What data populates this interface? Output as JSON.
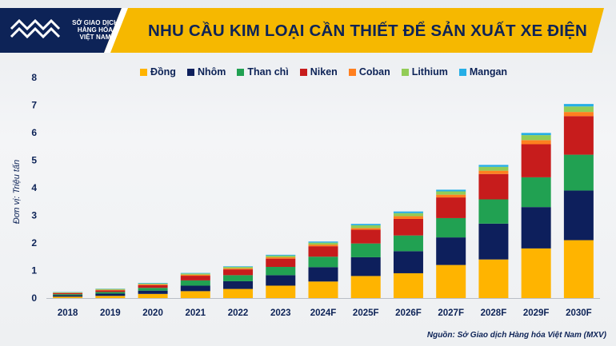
{
  "header": {
    "logo_lines": [
      "SỞ GIAO DỊCH",
      "HÀNG HÓA",
      "VIỆT NAM"
    ],
    "title": "NHU CẦU KIM LOẠI CẦN THIẾT ĐỂ SẢN XUẤT XE ĐIỆN"
  },
  "colors": {
    "banner_yellow": "#f6b800",
    "banner_navy": "#0d2357",
    "text_navy": "#0d2357"
  },
  "source": "Nguồn: Sở Giao dịch Hàng hóa Việt Nam (MXV)",
  "chart_data": {
    "type": "bar",
    "stacked": true,
    "ylabel": "Đơn vị: Triệu tấn",
    "ylim": [
      0,
      8
    ],
    "yticks": [
      0,
      1,
      2,
      3,
      4,
      5,
      6,
      7,
      8
    ],
    "categories": [
      "2018",
      "2019",
      "2020",
      "2021",
      "2022",
      "2023",
      "2024F",
      "2025F",
      "2026F",
      "2027F",
      "2028F",
      "2029F",
      "2030F"
    ],
    "series": [
      {
        "name": "Đồng",
        "color": "#ffb400",
        "values": [
          0.05,
          0.08,
          0.15,
          0.25,
          0.33,
          0.45,
          0.6,
          0.8,
          0.9,
          1.2,
          1.4,
          1.8,
          2.1
        ]
      },
      {
        "name": "Nhôm",
        "color": "#0d1f5c",
        "values": [
          0.05,
          0.08,
          0.12,
          0.2,
          0.28,
          0.38,
          0.52,
          0.68,
          0.8,
          1.0,
          1.3,
          1.5,
          1.8
        ]
      },
      {
        "name": "Than chì",
        "color": "#21a152",
        "values": [
          0.04,
          0.06,
          0.1,
          0.19,
          0.22,
          0.3,
          0.38,
          0.5,
          0.57,
          0.7,
          0.88,
          1.08,
          1.3
        ]
      },
      {
        "name": "Niken",
        "color": "#c71c1c",
        "values": [
          0.04,
          0.06,
          0.1,
          0.17,
          0.21,
          0.3,
          0.38,
          0.5,
          0.6,
          0.75,
          0.92,
          1.2,
          1.4
        ]
      },
      {
        "name": "Coban",
        "color": "#ff7f1f",
        "values": [
          0.01,
          0.02,
          0.03,
          0.04,
          0.04,
          0.05,
          0.06,
          0.06,
          0.1,
          0.1,
          0.12,
          0.15,
          0.15
        ]
      },
      {
        "name": "Lithium",
        "color": "#92cc57",
        "values": [
          0.02,
          0.03,
          0.03,
          0.04,
          0.05,
          0.06,
          0.07,
          0.1,
          0.11,
          0.12,
          0.14,
          0.18,
          0.2
        ]
      },
      {
        "name": "Mangan",
        "color": "#25aee6",
        "values": [
          0.01,
          0.01,
          0.02,
          0.02,
          0.02,
          0.03,
          0.04,
          0.05,
          0.06,
          0.06,
          0.07,
          0.08,
          0.09
        ]
      }
    ]
  }
}
